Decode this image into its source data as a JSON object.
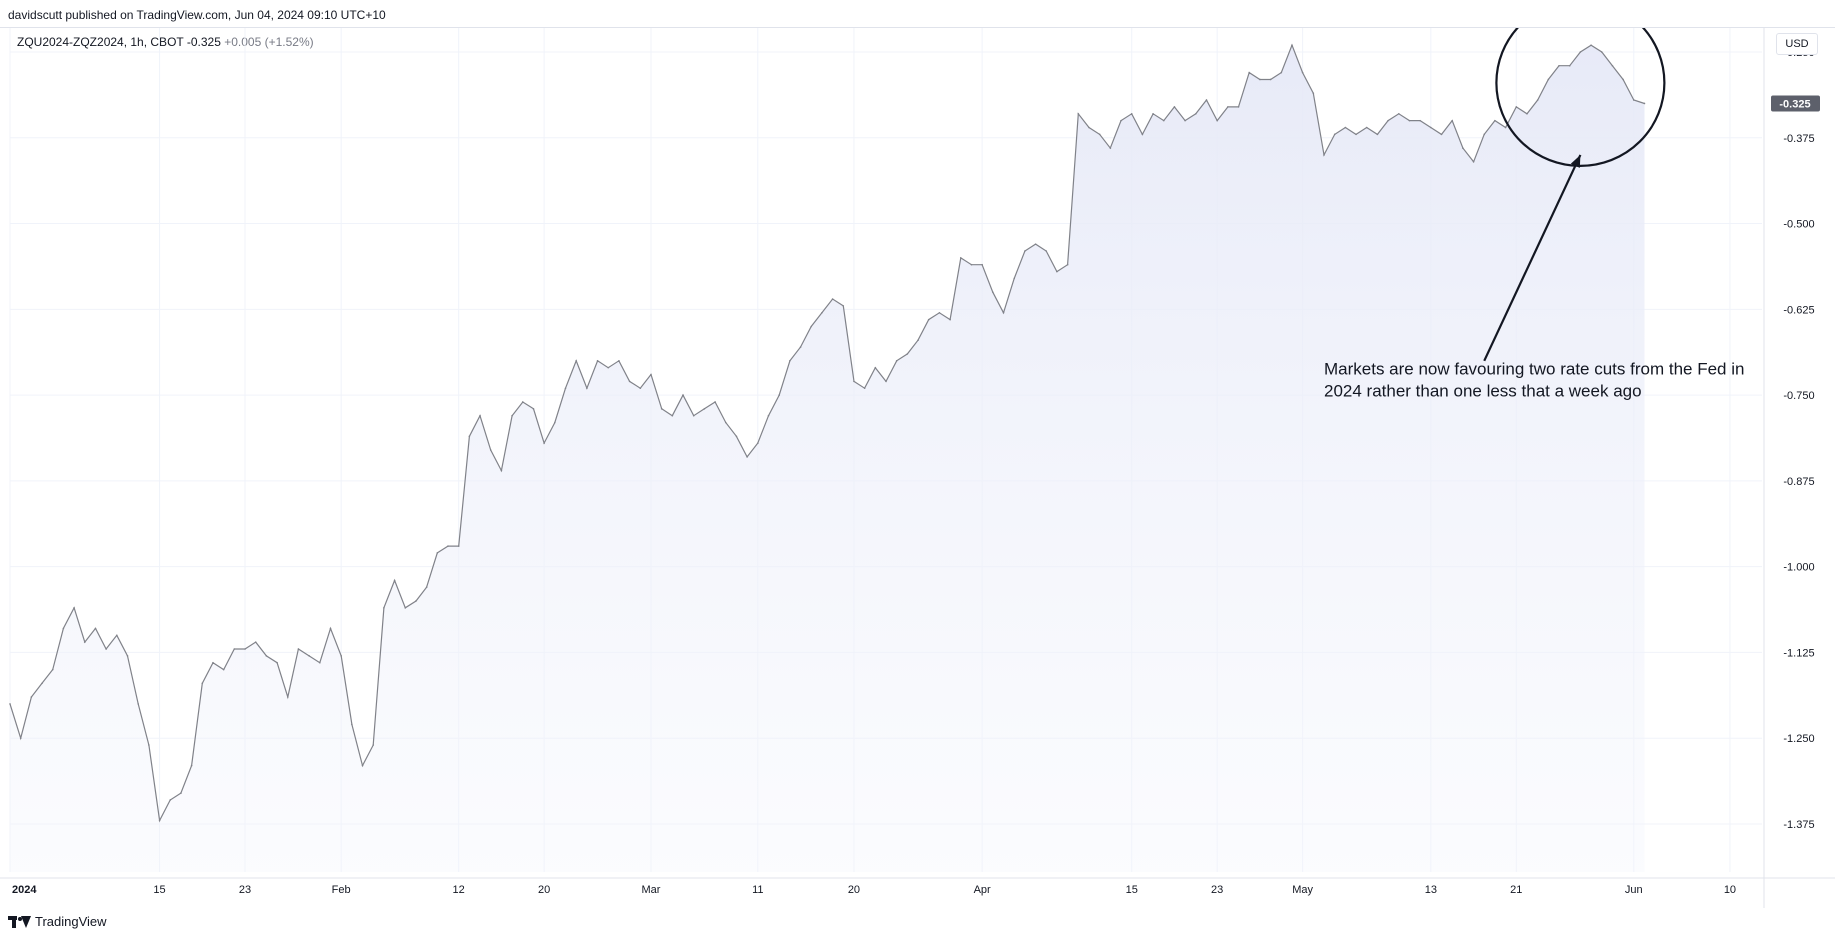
{
  "header": {
    "published_by": "davidscutt published on TradingView.com, Jun 04, 2024 09:10 UTC+10"
  },
  "symbol": {
    "name": "ZQU2024-ZQZ2024, 1h, CBOT",
    "last": "-0.325",
    "change": "+0.005 (+1.52%)"
  },
  "currency_button": "USD",
  "footer": {
    "brand": "TradingView"
  },
  "colors": {
    "line": "#808289",
    "area_top": "#e6e9f7",
    "grid": "#f0f3fa",
    "price_tag": "#5d606b"
  },
  "chart_data": {
    "type": "area",
    "title": "",
    "xlabel": "",
    "ylabel": "",
    "ylim": [
      -1.445,
      -0.215
    ],
    "y_ticks": [
      "-0.250",
      "-0.375",
      "-0.500",
      "-0.625",
      "-0.750",
      "-0.875",
      "-1.000",
      "-1.125",
      "-1.250",
      "-1.375"
    ],
    "y_tick_values": [
      -0.25,
      -0.375,
      -0.5,
      -0.625,
      -0.75,
      -0.875,
      -1.0,
      -1.125,
      -1.25,
      -1.375
    ],
    "x_ticks": [
      {
        "label": "2024",
        "date": "2024-01-01",
        "bold": true
      },
      {
        "label": "15",
        "date": "2024-01-15"
      },
      {
        "label": "23",
        "date": "2024-01-23"
      },
      {
        "label": "Feb",
        "date": "2024-02-01"
      },
      {
        "label": "12",
        "date": "2024-02-12"
      },
      {
        "label": "20",
        "date": "2024-02-20"
      },
      {
        "label": "Mar",
        "date": "2024-03-01"
      },
      {
        "label": "11",
        "date": "2024-03-11"
      },
      {
        "label": "20",
        "date": "2024-03-20"
      },
      {
        "label": "Apr",
        "date": "2024-04-01"
      },
      {
        "label": "15",
        "date": "2024-04-15"
      },
      {
        "label": "23",
        "date": "2024-04-23"
      },
      {
        "label": "May",
        "date": "2024-05-01"
      },
      {
        "label": "13",
        "date": "2024-05-13"
      },
      {
        "label": "21",
        "date": "2024-05-21"
      },
      {
        "label": "Jun",
        "date": "2024-06-01"
      },
      {
        "label": "10",
        "date": "2024-06-10"
      }
    ],
    "x_range": [
      "2024-01-01",
      "2024-06-13"
    ],
    "last_price_label": "-0.325",
    "series": [
      {
        "values": [
          {
            "x": "2024-01-01",
            "y": -1.2
          },
          {
            "x": "2024-01-02",
            "y": -1.25
          },
          {
            "x": "2024-01-03",
            "y": -1.19
          },
          {
            "x": "2024-01-04",
            "y": -1.17
          },
          {
            "x": "2024-01-05",
            "y": -1.15
          },
          {
            "x": "2024-01-06",
            "y": -1.09
          },
          {
            "x": "2024-01-07",
            "y": -1.06
          },
          {
            "x": "2024-01-08",
            "y": -1.11
          },
          {
            "x": "2024-01-09",
            "y": -1.09
          },
          {
            "x": "2024-01-10",
            "y": -1.12
          },
          {
            "x": "2024-01-11",
            "y": -1.1
          },
          {
            "x": "2024-01-12",
            "y": -1.13
          },
          {
            "x": "2024-01-13",
            "y": -1.2
          },
          {
            "x": "2024-01-14",
            "y": -1.26
          },
          {
            "x": "2024-01-15",
            "y": -1.37
          },
          {
            "x": "2024-01-16",
            "y": -1.34
          },
          {
            "x": "2024-01-17",
            "y": -1.33
          },
          {
            "x": "2024-01-18",
            "y": -1.29
          },
          {
            "x": "2024-01-19",
            "y": -1.17
          },
          {
            "x": "2024-01-20",
            "y": -1.14
          },
          {
            "x": "2024-01-21",
            "y": -1.15
          },
          {
            "x": "2024-01-22",
            "y": -1.12
          },
          {
            "x": "2024-01-23",
            "y": -1.12
          },
          {
            "x": "2024-01-24",
            "y": -1.11
          },
          {
            "x": "2024-01-25",
            "y": -1.13
          },
          {
            "x": "2024-01-26",
            "y": -1.14
          },
          {
            "x": "2024-01-27",
            "y": -1.19
          },
          {
            "x": "2024-01-28",
            "y": -1.12
          },
          {
            "x": "2024-01-29",
            "y": -1.13
          },
          {
            "x": "2024-01-30",
            "y": -1.14
          },
          {
            "x": "2024-01-31",
            "y": -1.09
          },
          {
            "x": "2024-02-01",
            "y": -1.13
          },
          {
            "x": "2024-02-02",
            "y": -1.23
          },
          {
            "x": "2024-02-03",
            "y": -1.29
          },
          {
            "x": "2024-02-04",
            "y": -1.26
          },
          {
            "x": "2024-02-05",
            "y": -1.06
          },
          {
            "x": "2024-02-06",
            "y": -1.02
          },
          {
            "x": "2024-02-07",
            "y": -1.06
          },
          {
            "x": "2024-02-08",
            "y": -1.05
          },
          {
            "x": "2024-02-09",
            "y": -1.03
          },
          {
            "x": "2024-02-10",
            "y": -0.98
          },
          {
            "x": "2024-02-11",
            "y": -0.97
          },
          {
            "x": "2024-02-12",
            "y": -0.97
          },
          {
            "x": "2024-02-13",
            "y": -0.81
          },
          {
            "x": "2024-02-14",
            "y": -0.78
          },
          {
            "x": "2024-02-15",
            "y": -0.83
          },
          {
            "x": "2024-02-16",
            "y": -0.86
          },
          {
            "x": "2024-02-17",
            "y": -0.78
          },
          {
            "x": "2024-02-18",
            "y": -0.76
          },
          {
            "x": "2024-02-19",
            "y": -0.77
          },
          {
            "x": "2024-02-20",
            "y": -0.82
          },
          {
            "x": "2024-02-21",
            "y": -0.79
          },
          {
            "x": "2024-02-22",
            "y": -0.74
          },
          {
            "x": "2024-02-23",
            "y": -0.7
          },
          {
            "x": "2024-02-24",
            "y": -0.74
          },
          {
            "x": "2024-02-25",
            "y": -0.7
          },
          {
            "x": "2024-02-26",
            "y": -0.71
          },
          {
            "x": "2024-02-27",
            "y": -0.7
          },
          {
            "x": "2024-02-28",
            "y": -0.73
          },
          {
            "x": "2024-02-29",
            "y": -0.74
          },
          {
            "x": "2024-03-01",
            "y": -0.72
          },
          {
            "x": "2024-03-02",
            "y": -0.77
          },
          {
            "x": "2024-03-03",
            "y": -0.78
          },
          {
            "x": "2024-03-04",
            "y": -0.75
          },
          {
            "x": "2024-03-05",
            "y": -0.78
          },
          {
            "x": "2024-03-06",
            "y": -0.77
          },
          {
            "x": "2024-03-07",
            "y": -0.76
          },
          {
            "x": "2024-03-08",
            "y": -0.79
          },
          {
            "x": "2024-03-09",
            "y": -0.81
          },
          {
            "x": "2024-03-10",
            "y": -0.84
          },
          {
            "x": "2024-03-11",
            "y": -0.82
          },
          {
            "x": "2024-03-12",
            "y": -0.78
          },
          {
            "x": "2024-03-13",
            "y": -0.75
          },
          {
            "x": "2024-03-14",
            "y": -0.7
          },
          {
            "x": "2024-03-15",
            "y": -0.68
          },
          {
            "x": "2024-03-16",
            "y": -0.65
          },
          {
            "x": "2024-03-17",
            "y": -0.63
          },
          {
            "x": "2024-03-18",
            "y": -0.61
          },
          {
            "x": "2024-03-19",
            "y": -0.62
          },
          {
            "x": "2024-03-20",
            "y": -0.73
          },
          {
            "x": "2024-03-21",
            "y": -0.74
          },
          {
            "x": "2024-03-22",
            "y": -0.71
          },
          {
            "x": "2024-03-23",
            "y": -0.73
          },
          {
            "x": "2024-03-24",
            "y": -0.7
          },
          {
            "x": "2024-03-25",
            "y": -0.69
          },
          {
            "x": "2024-03-26",
            "y": -0.67
          },
          {
            "x": "2024-03-27",
            "y": -0.64
          },
          {
            "x": "2024-03-28",
            "y": -0.63
          },
          {
            "x": "2024-03-29",
            "y": -0.64
          },
          {
            "x": "2024-03-30",
            "y": -0.55
          },
          {
            "x": "2024-03-31",
            "y": -0.56
          },
          {
            "x": "2024-04-01",
            "y": -0.56
          },
          {
            "x": "2024-04-02",
            "y": -0.6
          },
          {
            "x": "2024-04-03",
            "y": -0.63
          },
          {
            "x": "2024-04-04",
            "y": -0.58
          },
          {
            "x": "2024-04-05",
            "y": -0.54
          },
          {
            "x": "2024-04-06",
            "y": -0.53
          },
          {
            "x": "2024-04-07",
            "y": -0.54
          },
          {
            "x": "2024-04-08",
            "y": -0.57
          },
          {
            "x": "2024-04-09",
            "y": -0.56
          },
          {
            "x": "2024-04-10",
            "y": -0.34
          },
          {
            "x": "2024-04-11",
            "y": -0.36
          },
          {
            "x": "2024-04-12",
            "y": -0.37
          },
          {
            "x": "2024-04-13",
            "y": -0.39
          },
          {
            "x": "2024-04-14",
            "y": -0.35
          },
          {
            "x": "2024-04-15",
            "y": -0.34
          },
          {
            "x": "2024-04-16",
            "y": -0.37
          },
          {
            "x": "2024-04-17",
            "y": -0.34
          },
          {
            "x": "2024-04-18",
            "y": -0.35
          },
          {
            "x": "2024-04-19",
            "y": -0.33
          },
          {
            "x": "2024-04-20",
            "y": -0.35
          },
          {
            "x": "2024-04-21",
            "y": -0.34
          },
          {
            "x": "2024-04-22",
            "y": -0.32
          },
          {
            "x": "2024-04-23",
            "y": -0.35
          },
          {
            "x": "2024-04-24",
            "y": -0.33
          },
          {
            "x": "2024-04-25",
            "y": -0.33
          },
          {
            "x": "2024-04-26",
            "y": -0.28
          },
          {
            "x": "2024-04-27",
            "y": -0.29
          },
          {
            "x": "2024-04-28",
            "y": -0.29
          },
          {
            "x": "2024-04-29",
            "y": -0.28
          },
          {
            "x": "2024-04-30",
            "y": -0.24
          },
          {
            "x": "2024-05-01",
            "y": -0.28
          },
          {
            "x": "2024-05-02",
            "y": -0.31
          },
          {
            "x": "2024-05-03",
            "y": -0.4
          },
          {
            "x": "2024-05-04",
            "y": -0.37
          },
          {
            "x": "2024-05-05",
            "y": -0.36
          },
          {
            "x": "2024-05-06",
            "y": -0.37
          },
          {
            "x": "2024-05-07",
            "y": -0.36
          },
          {
            "x": "2024-05-08",
            "y": -0.37
          },
          {
            "x": "2024-05-09",
            "y": -0.35
          },
          {
            "x": "2024-05-10",
            "y": -0.34
          },
          {
            "x": "2024-05-11",
            "y": -0.35
          },
          {
            "x": "2024-05-12",
            "y": -0.35
          },
          {
            "x": "2024-05-13",
            "y": -0.36
          },
          {
            "x": "2024-05-14",
            "y": -0.37
          },
          {
            "x": "2024-05-15",
            "y": -0.35
          },
          {
            "x": "2024-05-16",
            "y": -0.39
          },
          {
            "x": "2024-05-17",
            "y": -0.41
          },
          {
            "x": "2024-05-18",
            "y": -0.37
          },
          {
            "x": "2024-05-19",
            "y": -0.35
          },
          {
            "x": "2024-05-20",
            "y": -0.36
          },
          {
            "x": "2024-05-21",
            "y": -0.33
          },
          {
            "x": "2024-05-22",
            "y": -0.34
          },
          {
            "x": "2024-05-23",
            "y": -0.32
          },
          {
            "x": "2024-05-24",
            "y": -0.29
          },
          {
            "x": "2024-05-25",
            "y": -0.27
          },
          {
            "x": "2024-05-26",
            "y": -0.27
          },
          {
            "x": "2024-05-27",
            "y": -0.25
          },
          {
            "x": "2024-05-28",
            "y": -0.24
          },
          {
            "x": "2024-05-29",
            "y": -0.25
          },
          {
            "x": "2024-05-30",
            "y": -0.27
          },
          {
            "x": "2024-05-31",
            "y": -0.29
          },
          {
            "x": "2024-06-01",
            "y": -0.32
          },
          {
            "x": "2024-06-02",
            "y": -0.325
          }
        ]
      }
    ],
    "annotations": [
      {
        "text_lines": [
          "Markets are now favouring two rate cuts from the Fed in",
          "2024 rather than one less that a week ago"
        ],
        "text_at": {
          "x": "2024-05-03",
          "y": -0.72
        },
        "arrow_from": {
          "x": "2024-05-18",
          "y": -0.7
        },
        "arrow_to": {
          "x": "2024-05-27",
          "y": -0.4
        },
        "ellipse_center": {
          "x": "2024-05-27",
          "y": -0.295
        }
      }
    ]
  }
}
